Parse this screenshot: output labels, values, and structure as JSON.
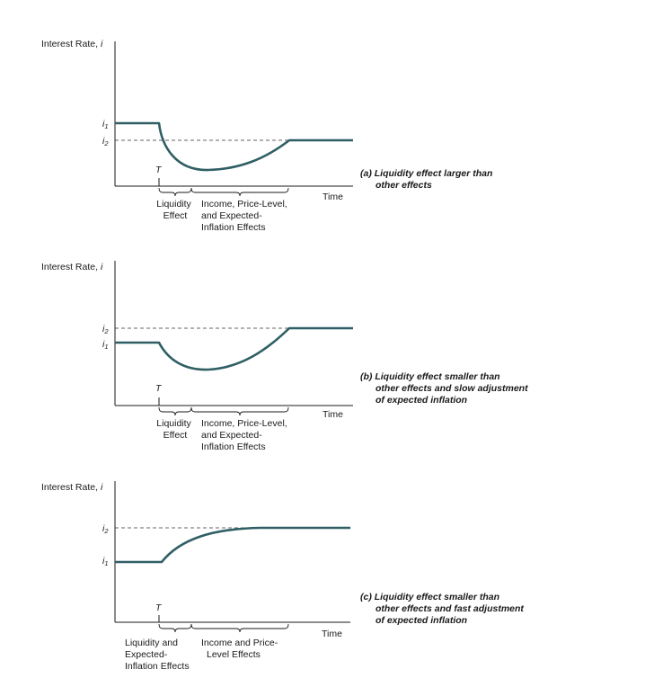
{
  "panels": [
    {
      "id": "a",
      "y_axis_label": "Interest Rate, ",
      "y_axis_var": "i",
      "x_axis_label": "Time",
      "i_upper_label": "i",
      "i_upper_sub": "1",
      "i_lower_label": "i",
      "i_lower_sub": "2",
      "t_label": "T",
      "brace_left_lines": [
        "Liquidity",
        "Effect"
      ],
      "brace_right_lines": [
        "Income, Price-Level,",
        "and Expected-",
        "Inflation Effects"
      ],
      "caption_prefix": "(a) ",
      "caption_lines": [
        "Liquidity effect larger than",
        "other effects"
      ]
    },
    {
      "id": "b",
      "y_axis_label": "Interest Rate, ",
      "y_axis_var": "i",
      "x_axis_label": "Time",
      "i_upper_label": "i",
      "i_upper_sub": "2",
      "i_lower_label": "i",
      "i_lower_sub": "1",
      "t_label": "T",
      "brace_left_lines": [
        "Liquidity",
        "Effect"
      ],
      "brace_right_lines": [
        "Income, Price-Level,",
        "and Expected-",
        "Inflation Effects"
      ],
      "caption_prefix": "(b) ",
      "caption_lines": [
        "Liquidity effect smaller than",
        "other effects and slow adjustment",
        "of expected inflation"
      ]
    },
    {
      "id": "c",
      "y_axis_label": "Interest Rate, ",
      "y_axis_var": "i",
      "x_axis_label": "Time",
      "i_upper_label": "i",
      "i_upper_sub": "2",
      "i_lower_label": "i",
      "i_lower_sub": "1",
      "t_label": "T",
      "brace_left_lines": [
        "Liquidity and",
        "Expected-",
        "Inflation Effects"
      ],
      "brace_right_lines": [
        "Income and Price-",
        "Level Effects"
      ],
      "caption_prefix": "(c) ",
      "caption_lines": [
        "Liquidity effect smaller than",
        "other effects and fast adjustment",
        "of expected inflation"
      ]
    }
  ],
  "colors": {
    "curve": "#2f5f65",
    "axis": "#1a1a1a",
    "text": "#1a1a1a"
  }
}
